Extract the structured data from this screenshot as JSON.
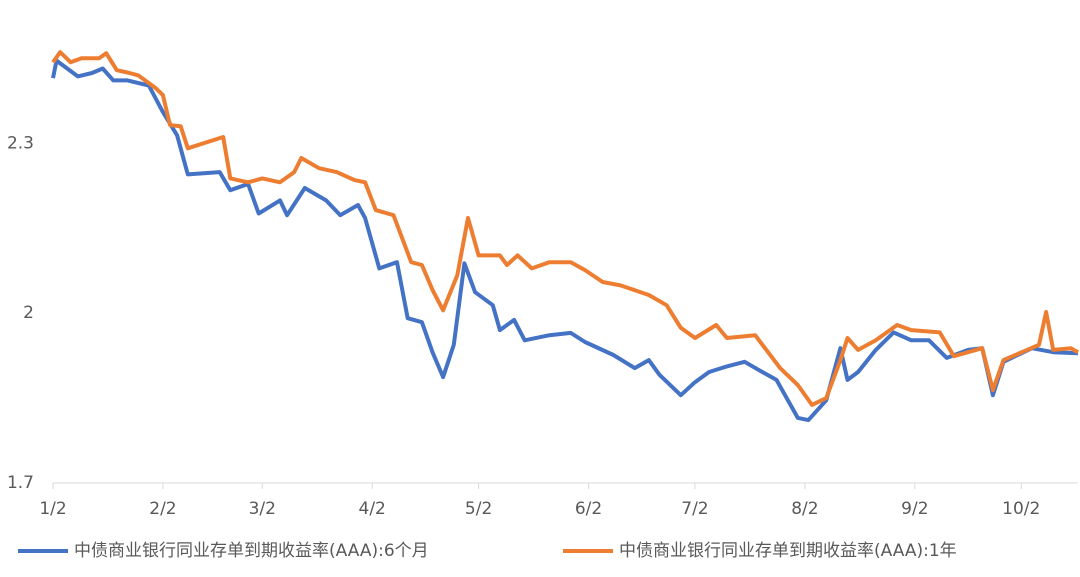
{
  "chart_data": {
    "type": "line",
    "xlim": [
      0,
      289
    ],
    "xticks": [
      {
        "value": 0,
        "label": "1/2"
      },
      {
        "value": 31,
        "label": "2/2"
      },
      {
        "value": 59,
        "label": "3/2"
      },
      {
        "value": 90,
        "label": "4/2"
      },
      {
        "value": 120,
        "label": "5/2"
      },
      {
        "value": 151,
        "label": "6/2"
      },
      {
        "value": 181,
        "label": "7/2"
      },
      {
        "value": 212,
        "label": "8/2"
      },
      {
        "value": 243,
        "label": "9/2"
      },
      {
        "value": 273,
        "label": "10/2"
      }
    ],
    "ylim": [
      1.7,
      2.5
    ],
    "yticks": [
      1.7,
      2,
      2.3
    ],
    "grid": false,
    "legend": "bottom",
    "series": [
      {
        "name": "中债商业银行同业存单到期收益率(AAA):6个月",
        "color": "#4472c4",
        "x": [
          0,
          1,
          4,
          7,
          11,
          14,
          17,
          21,
          27,
          31,
          35,
          38,
          47,
          50,
          55,
          58,
          64,
          66,
          71,
          77,
          81,
          86,
          88,
          92,
          97,
          100,
          104,
          107,
          110,
          113,
          116,
          119,
          124,
          126,
          130,
          133,
          140,
          146,
          150,
          158,
          164,
          168,
          171,
          177,
          181,
          185,
          190,
          195,
          200,
          204,
          210,
          213,
          218,
          222,
          224,
          227,
          232,
          237,
          242,
          247,
          252,
          258,
          262,
          265,
          268,
          276,
          282,
          289
        ],
        "values": [
          2.415,
          2.446,
          2.432,
          2.418,
          2.424,
          2.432,
          2.411,
          2.411,
          2.402,
          2.355,
          2.314,
          2.245,
          2.249,
          2.217,
          2.228,
          2.176,
          2.199,
          2.173,
          2.221,
          2.199,
          2.173,
          2.191,
          2.168,
          2.079,
          2.09,
          1.991,
          1.984,
          1.931,
          1.887,
          1.944,
          2.088,
          2.037,
          2.014,
          1.97,
          1.988,
          1.952,
          1.961,
          1.965,
          1.949,
          1.926,
          1.903,
          1.917,
          1.891,
          1.855,
          1.878,
          1.896,
          1.906,
          1.914,
          1.896,
          1.882,
          1.815,
          1.811,
          1.846,
          1.938,
          1.882,
          1.896,
          1.935,
          1.966,
          1.952,
          1.952,
          1.921,
          1.935,
          1.938,
          1.855,
          1.914,
          1.938,
          1.931,
          1.929
        ]
      },
      {
        "name": "中债商业银行同业存单到期收益率(AAA):1年",
        "color": "#ed7d31",
        "x": [
          0,
          2,
          5,
          8,
          13,
          15,
          18,
          21,
          24,
          29,
          31,
          33,
          36,
          38,
          48,
          50,
          55,
          59,
          64,
          68,
          70,
          75,
          80,
          85,
          88,
          91,
          96,
          101,
          104,
          107,
          110,
          114,
          117,
          120,
          126,
          128,
          131,
          135,
          140,
          146,
          150,
          155,
          160,
          168,
          173,
          177,
          181,
          187,
          190,
          198,
          205,
          210,
          214,
          218,
          222,
          224,
          227,
          232,
          238,
          242,
          250,
          254,
          262,
          265,
          268,
          278,
          280,
          282,
          287,
          289
        ],
        "values": [
          2.443,
          2.461,
          2.443,
          2.45,
          2.45,
          2.459,
          2.429,
          2.425,
          2.42,
          2.397,
          2.385,
          2.332,
          2.33,
          2.291,
          2.311,
          2.238,
          2.231,
          2.238,
          2.231,
          2.249,
          2.274,
          2.256,
          2.249,
          2.235,
          2.231,
          2.182,
          2.173,
          2.09,
          2.085,
          2.041,
          2.005,
          2.067,
          2.168,
          2.102,
          2.102,
          2.085,
          2.102,
          2.079,
          2.09,
          2.09,
          2.076,
          2.055,
          2.049,
          2.032,
          2.014,
          1.974,
          1.956,
          1.979,
          1.956,
          1.961,
          1.903,
          1.873,
          1.838,
          1.85,
          1.917,
          1.956,
          1.935,
          1.952,
          1.979,
          1.97,
          1.966,
          1.924,
          1.938,
          1.864,
          1.917,
          1.944,
          2.002,
          1.935,
          1.938,
          1.931
        ]
      }
    ]
  }
}
